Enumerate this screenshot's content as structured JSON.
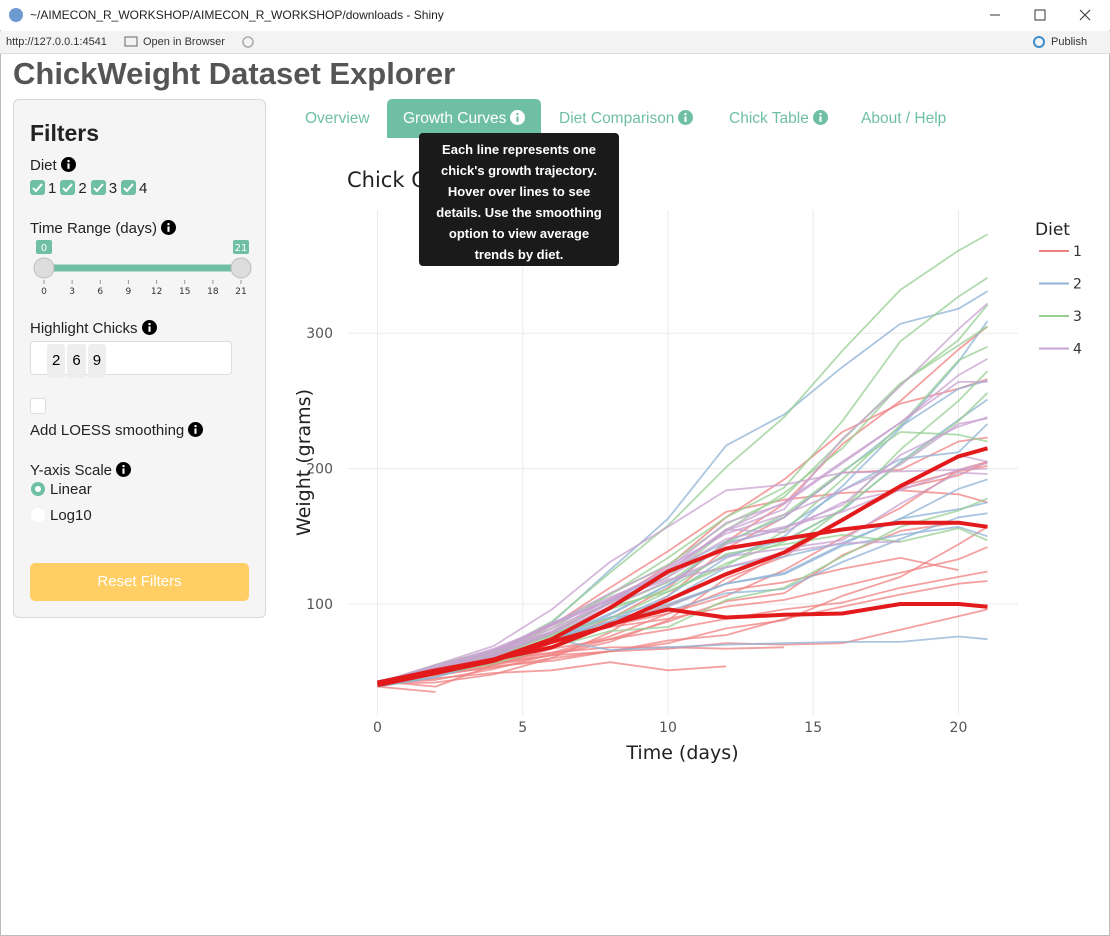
{
  "window": {
    "title": "~/AIMECON_R_WORKSHOP/AIMECON_R_WORKSHOP/downloads - Shiny",
    "url": "http://127.0.0.1:4541",
    "open_in_browser": "Open in Browser",
    "publish": "Publish"
  },
  "app_title": "ChickWeight Dataset Explorer",
  "sidebar": {
    "heading": "Filters",
    "diet": {
      "label": "Diet",
      "options": [
        "1",
        "2",
        "3",
        "4"
      ]
    },
    "time_range": {
      "label": "Time Range (days)",
      "min": 0,
      "max": 21,
      "ticks": [
        0,
        3,
        6,
        9,
        12,
        15,
        18,
        21
      ]
    },
    "highlight": {
      "label": "Highlight Chicks",
      "chips": [
        "2",
        "6",
        "9"
      ]
    },
    "loess": {
      "label": "Add LOESS smoothing"
    },
    "scale": {
      "label": "Y-axis Scale",
      "options": [
        "Linear",
        "Log10"
      ]
    },
    "reset": "Reset Filters"
  },
  "tabs": [
    "Overview",
    "Growth Curves",
    "Diet Comparison",
    "Chick Table",
    "About / Help"
  ],
  "tooltip": "Each line represents one chick's growth trajectory. Hover over lines to see details. Use the smoothing option to view average trends by diet.",
  "chart_data": {
    "type": "line",
    "title": "Chick Growth Trajectories",
    "xlabel": "Time (days)",
    "ylabel": "Weight (grams)",
    "legend_title": "Diet",
    "legend": "right",
    "grid": true,
    "x": [
      0,
      2,
      4,
      6,
      8,
      10,
      12,
      14,
      16,
      18,
      20,
      21
    ],
    "xlim": [
      -1.05,
      22.05
    ],
    "xticks": [
      0,
      5,
      10,
      15,
      20
    ],
    "ylim": [
      18,
      391
    ],
    "yticks": [
      100,
      200,
      300
    ],
    "highlight_color": "#e31a1c",
    "series": [
      {
        "name": "1",
        "color": "#f08080",
        "lines": [
          {
            "values": [
              42,
              51,
              59,
              64,
              76,
              93,
              106,
              125,
              149,
              171,
              199,
              205
            ]
          },
          {
            "values": [
              40,
              49,
              58,
              72,
              84,
              103,
              122,
              138,
              162,
              187,
              209,
              215
            ],
            "highlight": true
          },
          {
            "values": [
              43,
              39,
              55,
              67,
              84,
              99,
              115,
              138,
              163,
              187,
              198,
              202
            ]
          },
          {
            "values": [
              42,
              49,
              56,
              67,
              74,
              87,
              102,
              108,
              136,
              154,
              160,
              157
            ]
          },
          {
            "values": [
              41,
              42,
              48,
              60,
              79,
              106,
              141,
              164,
              197,
              199,
              220,
              223
            ]
          },
          {
            "values": [
              41,
              49,
              59,
              74,
              97,
              124,
              141,
              148,
              155,
              160,
              160,
              157
            ],
            "highlight": true
          },
          {
            "values": [
              41,
              49,
              57,
              71,
              89,
              112,
              146,
              174,
              218,
              250,
              288,
              305
            ]
          },
          {
            "values": [
              42,
              50,
              61,
              71,
              84,
              93,
              110,
              116,
              126,
              134,
              125,
              null
            ]
          },
          {
            "values": [
              42,
              51,
              59,
              68,
              85,
              96,
              90,
              92,
              93,
              100,
              100,
              98
            ],
            "highlight": true
          },
          {
            "values": [
              41,
              44,
              52,
              63,
              74,
              81,
              89,
              96,
              101,
              112,
              120,
              124
            ]
          },
          {
            "values": [
              43,
              51,
              63,
              84,
              112,
              139,
              168,
              177,
              182,
              184,
              181,
              175
            ]
          },
          {
            "values": [
              41,
              49,
              56,
              62,
              72,
              88,
              119,
              135,
              162,
              185,
              195,
              205
            ]
          },
          {
            "values": [
              41,
              48,
              53,
              60,
              65,
              67,
              71,
              70,
              71,
              81,
              91,
              96
            ]
          },
          {
            "values": [
              41,
              49,
              62,
              79,
              101,
              128,
              164,
              192,
              227,
              248,
              259,
              266
            ]
          },
          {
            "values": [
              41,
              49,
              56,
              64,
              68,
              68,
              67,
              68,
              null,
              null,
              null,
              null
            ]
          },
          {
            "values": [
              41,
              45,
              49,
              51,
              57,
              51,
              54,
              null,
              null,
              null,
              null,
              null
            ]
          },
          {
            "values": [
              42,
              51,
              61,
              72,
              83,
              89,
              98,
              103,
              113,
              123,
              133,
              142
            ]
          },
          {
            "values": [
              39,
              35,
              null,
              null,
              null,
              null,
              null,
              null,
              null,
              null,
              null,
              null
            ]
          },
          {
            "values": [
              43,
              48,
              55,
              62,
              65,
              71,
              82,
              88,
              106,
              120,
              144,
              157
            ]
          },
          {
            "values": [
              41,
              47,
              54,
              58,
              65,
              73,
              77,
              89,
              98,
              107,
              115,
              117
            ]
          }
        ]
      },
      {
        "name": "2",
        "color": "#8fb3d6",
        "lines": [
          {
            "values": [
              40,
              50,
              62,
              86,
              125,
              163,
              217,
              240,
              275,
              307,
              318,
              331
            ]
          },
          {
            "values": [
              41,
              55,
              64,
              77,
              90,
              95,
              108,
              111,
              131,
              148,
              164,
              167
            ]
          },
          {
            "values": [
              43,
              52,
              61,
              73,
              90,
              103,
              127,
              135,
              145,
              163,
              170,
              175
            ]
          },
          {
            "values": [
              42,
              52,
              58,
              74,
              66,
              68,
              70,
              71,
              72,
              72,
              76,
              74
            ]
          },
          {
            "values": [
              40,
              49,
              62,
              78,
              102,
              124,
              146,
              164,
              197,
              231,
              259,
              265
            ]
          },
          {
            "values": [
              42,
              48,
              57,
              74,
              93,
              114,
              136,
              147,
              169,
              205,
              236,
              251
            ]
          },
          {
            "values": [
              39,
              46,
              58,
              73,
              87,
              100,
              115,
              123,
              144,
              163,
              185,
              192
            ]
          },
          {
            "values": [
              39,
              46,
              58,
              73,
              92,
              114,
              145,
              156,
              184,
              207,
              212,
              233
            ]
          },
          {
            "values": [
              39,
              48,
              59,
              74,
              87,
              106,
              134,
              150,
              187,
              230,
              279,
              309
            ]
          },
          {
            "values": [
              42,
              48,
              59,
              72,
              85,
              98,
              115,
              122,
              143,
              151,
              157,
              150
            ]
          }
        ]
      },
      {
        "name": "3",
        "color": "#97cf93",
        "lines": [
          {
            "values": [
              42,
              53,
              62,
              73,
              85,
              102,
              123,
              138,
              170,
              204,
              235,
              256
            ]
          },
          {
            "values": [
              41,
              49,
              65,
              82,
              107,
              129,
              159,
              179,
              221,
              263,
              291,
              305
            ]
          },
          {
            "values": [
              39,
              50,
              63,
              77,
              96,
              111,
              137,
              144,
              151,
              146,
              156,
              147
            ]
          },
          {
            "values": [
              41,
              49,
              63,
              85,
              107,
              134,
              164,
              186,
              235,
              294,
              327,
              341
            ]
          },
          {
            "values": [
              41,
              53,
              64,
              87,
              123,
              158,
              201,
              238,
              287,
              332,
              361,
              373
            ]
          },
          {
            "values": [
              39,
              48,
              61,
              76,
              98,
              116,
              145,
              166,
              198,
              227,
              225,
              220
            ]
          },
          {
            "values": [
              41,
              48,
              56,
              68,
              80,
              83,
              103,
              112,
              135,
              157,
              169,
              178
            ]
          },
          {
            "values": [
              41,
              49,
              61,
              74,
              98,
              109,
              128,
              154,
              192,
              232,
              280,
              290
            ]
          },
          {
            "values": [
              42,
              50,
              61,
              78,
              89,
              109,
              130,
              146,
              170,
              214,
              250,
              272
            ]
          },
          {
            "values": [
              41,
              55,
              66,
              79,
              101,
              120,
              154,
              182,
              215,
              262,
              295,
              321
            ]
          }
        ]
      },
      {
        "name": "4",
        "color": "#c8a2d0",
        "lines": [
          {
            "values": [
              42,
              51,
              66,
              85,
              103,
              124,
              155,
              153,
              175,
              184,
              199,
              204
            ]
          },
          {
            "values": [
              42,
              49,
              63,
              84,
              103,
              126,
              160,
              174,
              204,
              234,
              269,
              281
            ]
          },
          {
            "values": [
              42,
              55,
              69,
              96,
              131,
              157,
              184,
              188,
              197,
              198,
              199,
              200
            ]
          },
          {
            "values": [
              42,
              51,
              65,
              86,
              103,
              118,
              127,
              138,
              145,
              146,
              null,
              null
            ]
          },
          {
            "values": [
              41,
              50,
              61,
              78,
              98,
              117,
              135,
              141,
              147,
              174,
              197,
              196
            ]
          },
          {
            "values": [
              40,
              52,
              62,
              82,
              101,
              120,
              144,
              156,
              173,
              210,
              231,
              238
            ]
          },
          {
            "values": [
              41,
              53,
              66,
              79,
              100,
              123,
              148,
              157,
              168,
              185,
              210,
              205
            ]
          },
          {
            "values": [
              39,
              50,
              62,
              80,
              104,
              125,
              154,
              170,
              222,
              261,
              303,
              322
            ]
          },
          {
            "values": [
              40,
              53,
              64,
              85,
              108,
              128,
              152,
              166,
              184,
              203,
              233,
              237
            ]
          },
          {
            "values": [
              41,
              54,
              67,
              84,
              105,
              122,
              155,
              175,
              205,
              234,
              264,
              264
            ]
          }
        ]
      }
    ]
  }
}
